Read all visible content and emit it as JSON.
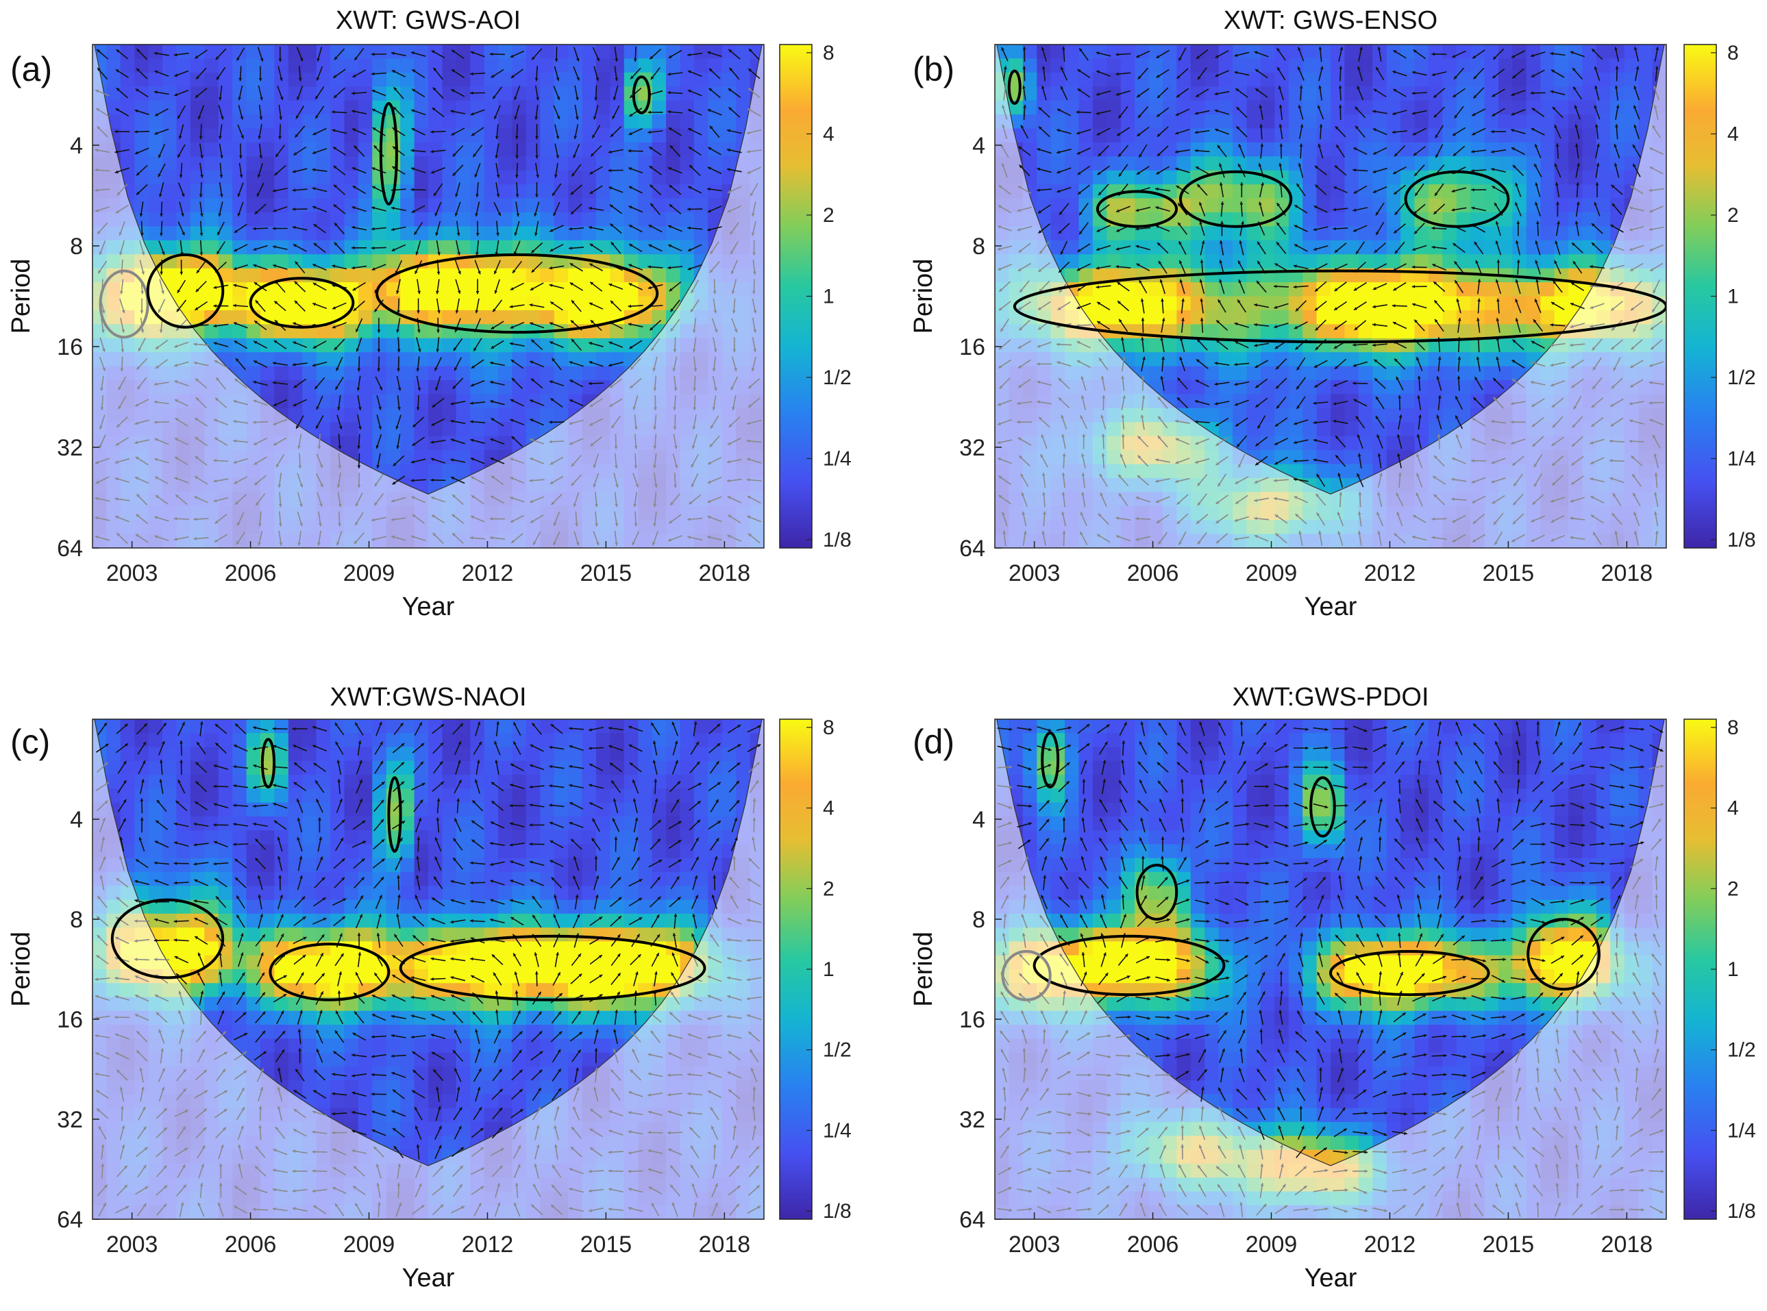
{
  "figure": {
    "panels": [
      {
        "letter": "(a)",
        "title": "XWT: GWS-AOI",
        "ylabel": "Period",
        "xlabel": "Year",
        "x_ticks": [
          "2003",
          "2006",
          "2009",
          "2012",
          "2015",
          "2018"
        ],
        "y_ticks": [
          "4",
          "8",
          "16",
          "32",
          "64"
        ],
        "colorbar_ticks": [
          "8",
          "4",
          "2",
          "1",
          "1/2",
          "1/4",
          "1/8"
        ]
      },
      {
        "letter": "(b)",
        "title": "XWT: GWS-ENSO",
        "ylabel": "Period",
        "xlabel": "Year",
        "x_ticks": [
          "2003",
          "2006",
          "2009",
          "2012",
          "2015",
          "2018"
        ],
        "y_ticks": [
          "4",
          "8",
          "16",
          "32",
          "64"
        ],
        "colorbar_ticks": [
          "8",
          "4",
          "2",
          "1",
          "1/2",
          "1/4",
          "1/8"
        ]
      },
      {
        "letter": "(c)",
        "title": "XWT:GWS-NAOI",
        "ylabel": "Period",
        "xlabel": "Year",
        "x_ticks": [
          "2003",
          "2006",
          "2009",
          "2012",
          "2015",
          "2018"
        ],
        "y_ticks": [
          "4",
          "8",
          "16",
          "32",
          "64"
        ],
        "colorbar_ticks": [
          "8",
          "4",
          "2",
          "1",
          "1/2",
          "1/4",
          "1/8"
        ]
      },
      {
        "letter": "(d)",
        "title": "XWT:GWS-PDOI",
        "ylabel": "Period",
        "xlabel": "Year",
        "x_ticks": [
          "2003",
          "2006",
          "2009",
          "2012",
          "2015",
          "2018"
        ],
        "y_ticks": [
          "4",
          "8",
          "16",
          "32",
          "64"
        ],
        "colorbar_ticks": [
          "8",
          "4",
          "2",
          "1",
          "1/2",
          "1/4",
          "1/8"
        ]
      }
    ]
  },
  "chart_data": [
    {
      "type": "heatmap",
      "title": "XWT: GWS-AOI",
      "xlabel": "Year",
      "ylabel": "Period",
      "xlim": [
        2002,
        2019
      ],
      "ylim": [
        2,
        64
      ],
      "y_scale": "log2",
      "x_ticks": [
        2003,
        2006,
        2009,
        2012,
        2015,
        2018
      ],
      "y_ticks": [
        4,
        8,
        16,
        32,
        64
      ],
      "colorbar_range": [
        "1/8",
        "8"
      ],
      "colormap": "parula",
      "significant_regions": [
        {
          "x": [
            2002.2,
            2003.4
          ],
          "period": [
            9.5,
            15
          ],
          "outside_cone": true
        },
        {
          "x": [
            2003.4,
            2005.3
          ],
          "period": [
            8.5,
            14
          ]
        },
        {
          "x": [
            2006.0,
            2008.6
          ],
          "period": [
            10,
            14
          ]
        },
        {
          "x": [
            2009.2,
            2016.3
          ],
          "period": [
            8.5,
            14.5
          ]
        },
        {
          "x": [
            2009.3,
            2009.7
          ],
          "period": [
            3,
            6
          ]
        },
        {
          "x": [
            2015.7,
            2016.1
          ],
          "period": [
            2.5,
            3.2
          ]
        }
      ],
      "hotspots": [
        {
          "x": 2004.5,
          "period": 11,
          "power": 4
        },
        {
          "x": 2007.5,
          "period": 12,
          "power": 3
        },
        {
          "x": 2011,
          "period": 10.5,
          "power": 5
        },
        {
          "x": 2015,
          "period": 11.5,
          "power": 6
        }
      ]
    },
    {
      "type": "heatmap",
      "title": "XWT: GWS-ENSO",
      "xlabel": "Year",
      "ylabel": "Period",
      "xlim": [
        2002,
        2019
      ],
      "ylim": [
        2,
        64
      ],
      "y_scale": "log2",
      "x_ticks": [
        2003,
        2006,
        2009,
        2012,
        2015,
        2018
      ],
      "y_ticks": [
        4,
        8,
        16,
        32,
        64
      ],
      "colorbar_range": [
        "1/8",
        "8"
      ],
      "colormap": "parula",
      "significant_regions": [
        {
          "x": [
            2002.5,
            2019
          ],
          "period": [
            9.5,
            15.5
          ]
        },
        {
          "x": [
            2004.6,
            2006.6
          ],
          "period": [
            5.5,
            7
          ]
        },
        {
          "x": [
            2006.7,
            2009.5
          ],
          "period": [
            4.8,
            7
          ]
        },
        {
          "x": [
            2012.4,
            2015.0
          ],
          "period": [
            4.8,
            7
          ]
        },
        {
          "x": [
            2002.4,
            2002.6
          ],
          "period": [
            2.4,
            3.0
          ]
        }
      ],
      "hotspots": [
        {
          "x": 2012,
          "period": 12,
          "power": 8
        },
        {
          "x": 2005,
          "period": 12,
          "power": 5
        },
        {
          "x": 2017,
          "period": 12,
          "power": 4
        },
        {
          "x": 2006,
          "period": 32,
          "power": 4
        },
        {
          "x": 2009,
          "period": 48,
          "power": 4
        }
      ]
    },
    {
      "type": "heatmap",
      "title": "XWT:GWS-NAOI",
      "xlabel": "Year",
      "ylabel": "Period",
      "xlim": [
        2002,
        2019
      ],
      "ylim": [
        2,
        64
      ],
      "y_scale": "log2",
      "x_ticks": [
        2003,
        2006,
        2009,
        2012,
        2015,
        2018
      ],
      "y_ticks": [
        4,
        8,
        16,
        32,
        64
      ],
      "colorbar_range": [
        "1/8",
        "8"
      ],
      "colormap": "parula",
      "significant_regions": [
        {
          "x": [
            2002.5,
            2005.3
          ],
          "period": [
            7,
            12
          ]
        },
        {
          "x": [
            2006.5,
            2009.5
          ],
          "period": [
            9.5,
            14
          ]
        },
        {
          "x": [
            2009.8,
            2017.5
          ],
          "period": [
            9,
            14
          ]
        },
        {
          "x": [
            2006.3,
            2006.6
          ],
          "period": [
            2.3,
            3.2
          ]
        },
        {
          "x": [
            2009.5,
            2009.8
          ],
          "period": [
            3,
            5
          ]
        }
      ],
      "hotspots": [
        {
          "x": 2004,
          "period": 10.5,
          "power": 4
        },
        {
          "x": 2008,
          "period": 11,
          "power": 4
        },
        {
          "x": 2012,
          "period": 11,
          "power": 5
        },
        {
          "x": 2015.5,
          "period": 11,
          "power": 7
        }
      ]
    },
    {
      "type": "heatmap",
      "title": "XWT:GWS-PDOI",
      "xlabel": "Year",
      "ylabel": "Period",
      "xlim": [
        2002,
        2019
      ],
      "ylim": [
        2,
        64
      ],
      "y_scale": "log2",
      "x_ticks": [
        2003,
        2006,
        2009,
        2012,
        2015,
        2018
      ],
      "y_ticks": [
        4,
        8,
        16,
        32,
        64
      ],
      "colorbar_range": [
        "1/8",
        "8"
      ],
      "colormap": "parula",
      "significant_regions": [
        {
          "x": [
            2003.0,
            2007.8
          ],
          "period": [
            9,
            13.5
          ]
        },
        {
          "x": [
            2010.5,
            2014.5
          ],
          "period": [
            10,
            13.5
          ]
        },
        {
          "x": [
            2015.5,
            2017.3
          ],
          "period": [
            8,
            13
          ]
        },
        {
          "x": [
            2002.2,
            2003.4
          ],
          "period": [
            10,
            14
          ],
          "outside_cone": true
        },
        {
          "x": [
            2003.2,
            2003.6
          ],
          "period": [
            2.2,
            3.2
          ]
        },
        {
          "x": [
            2005.6,
            2006.6
          ],
          "period": [
            5.5,
            8
          ]
        },
        {
          "x": [
            2010.0,
            2010.6
          ],
          "period": [
            3,
            4.5
          ]
        }
      ],
      "hotspots": [
        {
          "x": 2005,
          "period": 11,
          "power": 4
        },
        {
          "x": 2012,
          "period": 11.5,
          "power": 4
        },
        {
          "x": 2016.5,
          "period": 11,
          "power": 3
        },
        {
          "x": 2010,
          "period": 45,
          "power": 6
        },
        {
          "x": 2007,
          "period": 40,
          "power": 3
        }
      ]
    }
  ]
}
